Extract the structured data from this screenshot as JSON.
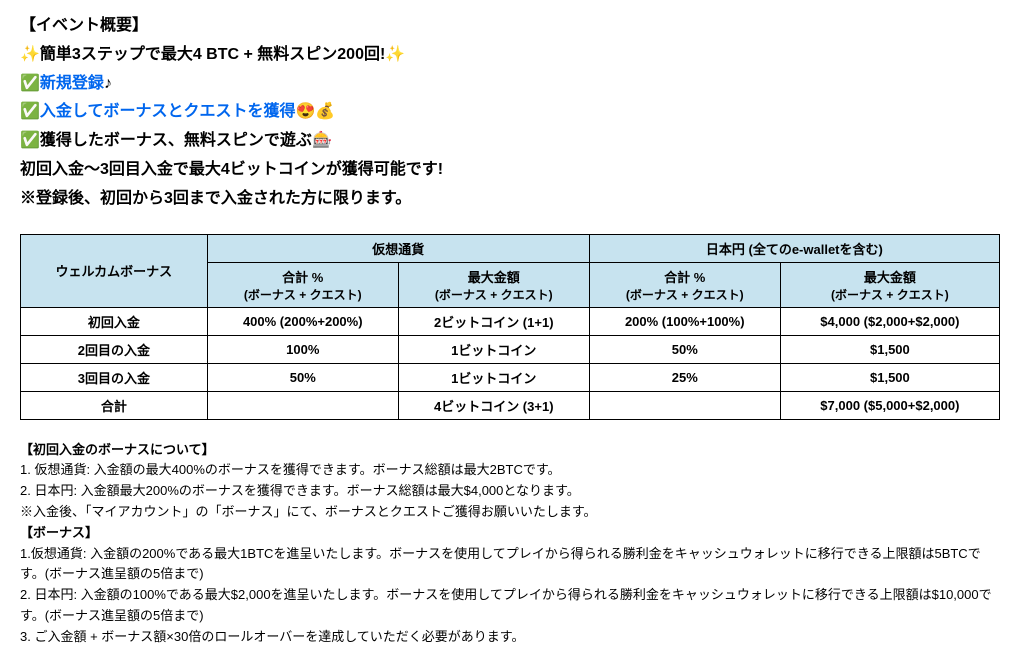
{
  "intro": {
    "header": "【イベント概要】",
    "line1_pre": "✨",
    "line1_text": "簡単3ステップで最大4 BTC + 無料スピン200回!",
    "line1_post": "  ✨",
    "line2_check": "✅",
    "line2_text": "新規登録",
    "line2_note": "♪",
    "line3_check": "✅",
    "line3_text": "入金してボーナスとクエストを獲得",
    "line3_emoji": "😍💰",
    "line4_check": "✅",
    "line4_text": "獲得したボーナス、無料スピンで遊ぶ",
    "line4_emoji": "🎰",
    "line5": "初回入金～3回目入金で最大4ビットコインが獲得可能です!",
    "line6": "※登録後、初回から3回まで入金された方に限ります。"
  },
  "table": {
    "col0": "ウェルカムボーナス",
    "group1": "仮想通貨",
    "group2": "日本円 (全てのe-walletを含む)",
    "sub1": "合計 %",
    "sub1b": "(ボーナス + クエスト)",
    "sub2": "最大金額",
    "sub2b": "(ボーナス + クエスト)",
    "sub3": "合計 %",
    "sub3b": "(ボーナス + クエスト)",
    "sub4": "最大金額",
    "sub4b": "(ボーナス + クエスト)",
    "r1c0": "初回入金",
    "r1c1": "400% (200%+200%)",
    "r1c2": "2ビットコイン (1+1)",
    "r1c3": "200% (100%+100%)",
    "r1c4": "$4,000 ($2,000+$2,000)",
    "r2c0": "2回目の入金",
    "r2c1": "100%",
    "r2c2": "1ビットコイン",
    "r2c3": "50%",
    "r2c4": "$1,500",
    "r3c0": "3回目の入金",
    "r3c1": "50%",
    "r3c2": "1ビットコイン",
    "r3c3": "25%",
    "r3c4": "$1,500",
    "r4c0": "合計",
    "r4c1": "",
    "r4c2": "4ビットコイン (3+1)",
    "r4c3": "",
    "r4c4": "$7,000 ($5,000+$2,000)"
  },
  "notes1": {
    "title": "【初回入金のボーナスについて】",
    "l1": "1. 仮想通貨: 入金額の最大400%のボーナスを獲得できます。ボーナス総額は最大2BTCです。",
    "l2": "2. 日本円: 入金額最大200%のボーナスを獲得できます。ボーナス総額は最大$4,000となります。",
    "l3": "※入金後、「マイアカウント」の「ボーナス」にて、ボーナスとクエストご獲得お願いいたします。"
  },
  "notes2": {
    "title": "【ボーナス】",
    "l1": "1.仮想通貨: 入金額の200%である最大1BTCを進呈いたします。ボーナスを使用してプレイから得られる勝利金をキャッシュウォレットに移行できる上限額は5BTCです。(ボーナス進呈額の5倍まで)",
    "l2": "2. 日本円: 入金額の100%である最大$2,000を進呈いたします。ボーナスを使用してプレイから得られる勝利金をキャッシュウォレットに移行できる上限額は$10,000です。(ボーナス進呈額の5倍まで)",
    "l3": "3. ご入金額 + ボーナス額×30倍のロールオーバーを達成していただく必要があります。"
  },
  "colors": {
    "link": "#0066ee",
    "header_bg": "#c7e3ef",
    "border": "#000000",
    "text": "#000000",
    "background": "#ffffff"
  }
}
